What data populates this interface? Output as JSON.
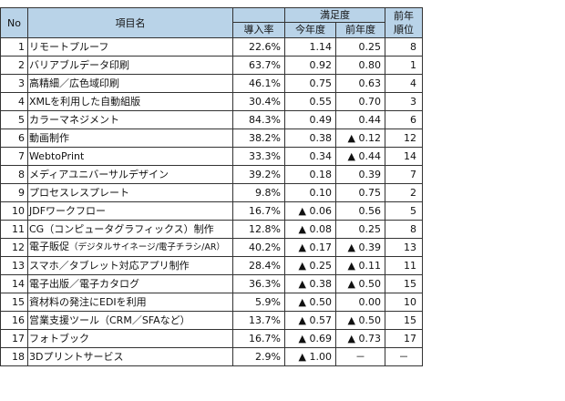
{
  "header": {
    "no": "No",
    "item": "項目名",
    "satisfaction": "満足度",
    "prev_year_top": "前年",
    "prev_year_bottom": "順位",
    "adoption": "導入率",
    "this_year": "今年度",
    "last_year": "前年度"
  },
  "rows": [
    {
      "no": "1",
      "name": "リモートプルーフ",
      "rate": "22.6%",
      "cur": "1.14",
      "prev": "0.25",
      "rank": "8"
    },
    {
      "no": "2",
      "name": "バリアブルデータ印刷",
      "rate": "63.7%",
      "cur": "0.92",
      "prev": "0.80",
      "rank": "1"
    },
    {
      "no": "3",
      "name": "高精細／広色域印刷",
      "rate": "46.1%",
      "cur": "0.75",
      "prev": "0.63",
      "rank": "4"
    },
    {
      "no": "4",
      "name": "XMLを利用した自動組版",
      "rate": "30.4%",
      "cur": "0.55",
      "prev": "0.70",
      "rank": "3"
    },
    {
      "no": "5",
      "name": "カラーマネジメント",
      "rate": "84.3%",
      "cur": "0.49",
      "prev": "0.44",
      "rank": "6"
    },
    {
      "no": "6",
      "name": "動画制作",
      "rate": "38.2%",
      "cur": "0.38",
      "prev": "▲ 0.12",
      "rank": "12"
    },
    {
      "no": "7",
      "name": "WebtoPrint",
      "rate": "33.3%",
      "cur": "0.34",
      "prev": "▲ 0.44",
      "rank": "14"
    },
    {
      "no": "8",
      "name": "メディアユニバーサルデザイン",
      "rate": "39.2%",
      "cur": "0.18",
      "prev": "0.39",
      "rank": "7"
    },
    {
      "no": "9",
      "name": "プロセスレスプレート",
      "rate": "9.8%",
      "cur": "0.10",
      "prev": "0.75",
      "rank": "2"
    },
    {
      "no": "10",
      "name": "JDFワークフロー",
      "rate": "16.7%",
      "cur": "▲ 0.06",
      "prev": "0.56",
      "rank": "5"
    },
    {
      "no": "11",
      "name": "CG（コンピュータグラフィックス）制作",
      "rate": "12.8%",
      "cur": "▲ 0.08",
      "prev": "0.25",
      "rank": "8"
    },
    {
      "no": "12",
      "name": "電子販促",
      "name_small": "（デジタルサイネージ/電子チラシ/AR）",
      "rate": "40.2%",
      "cur": "▲ 0.17",
      "prev": "▲ 0.39",
      "rank": "13"
    },
    {
      "no": "13",
      "name": "スマホ／タブレット対応アプリ制作",
      "rate": "28.4%",
      "cur": "▲ 0.25",
      "prev": "▲ 0.11",
      "rank": "11"
    },
    {
      "no": "14",
      "name": "電子出版／電子カタログ",
      "rate": "36.3%",
      "cur": "▲ 0.38",
      "prev": "▲ 0.50",
      "rank": "15"
    },
    {
      "no": "15",
      "name": "資材料の発注にEDIを利用",
      "rate": "5.9%",
      "cur": "▲ 0.50",
      "prev": "0.00",
      "rank": "10"
    },
    {
      "no": "16",
      "name": "営業支援ツール（CRM／SFAなど）",
      "rate": "13.7%",
      "cur": "▲ 0.57",
      "prev": "▲ 0.50",
      "rank": "15"
    },
    {
      "no": "17",
      "name": "フォトブック",
      "rate": "16.7%",
      "cur": "▲ 0.69",
      "prev": "▲ 0.73",
      "rank": "17"
    },
    {
      "no": "18",
      "name": "3Dプリントサービス",
      "rate": "2.9%",
      "cur": "▲ 1.00",
      "prev": "－",
      "rank": "－"
    }
  ]
}
